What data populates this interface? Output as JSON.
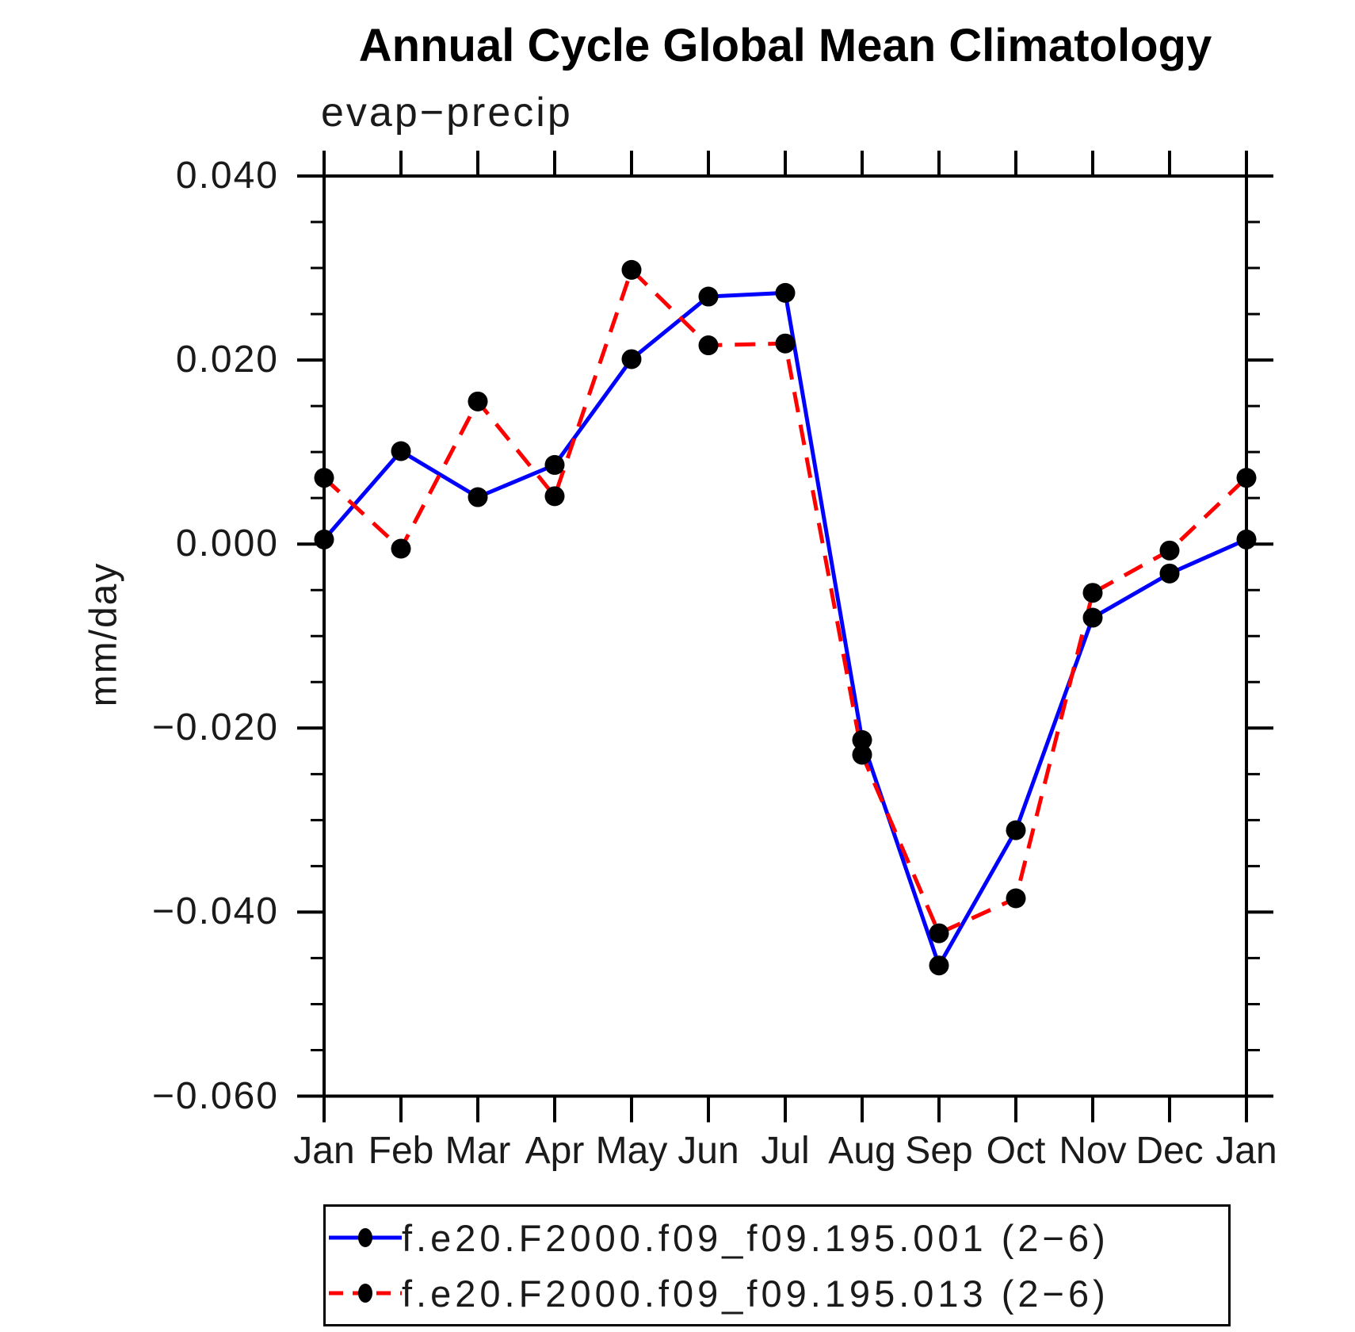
{
  "page": {
    "background": "#ffffff"
  },
  "header": {
    "title": "Annual Cycle Global Mean Climatology",
    "subtitle": "evap−precip"
  },
  "chart_data": {
    "type": "line",
    "title": "Annual Cycle Global Mean Climatology",
    "subtitle": "evap−precip",
    "xlabel": "",
    "ylabel": "mm/day",
    "units": "mm/day",
    "x_categories": [
      "Jan",
      "Feb",
      "Mar",
      "Apr",
      "May",
      "Jun",
      "Jul",
      "Aug",
      "Sep",
      "Oct",
      "Nov",
      "Dec",
      "Jan"
    ],
    "ylim": [
      -0.06,
      0.04
    ],
    "y_major_ticks": [
      {
        "value": 0.04,
        "label": "0.040"
      },
      {
        "value": 0.02,
        "label": "0.020"
      },
      {
        "value": 0.0,
        "label": "0.000"
      },
      {
        "value": -0.02,
        "label": "−0.020"
      },
      {
        "value": -0.04,
        "label": "−0.040"
      },
      {
        "value": -0.06,
        "label": "−0.060"
      }
    ],
    "y_minor_tick_step": 0.005,
    "grid": "off",
    "legend_position": "bottom",
    "marker": {
      "shape": "filled-circle",
      "color": "#000000"
    },
    "series": [
      {
        "name": "f.e20.F2000.f09_f09.195.001 (2−6)",
        "color": "#0000ff",
        "line_style": "solid",
        "values": [
          0.0005,
          0.0101,
          0.0051,
          0.0086,
          0.0201,
          0.0269,
          0.0273,
          -0.0213,
          -0.0458,
          -0.0311,
          -0.008,
          -0.0032,
          0.0005
        ]
      },
      {
        "name": "f.e20.F2000.f09_f09.195.013 (2−6)",
        "color": "#ff0000",
        "line_style": "dashed",
        "values": [
          0.0072,
          -0.0005,
          0.0155,
          0.0052,
          0.0298,
          0.0216,
          0.0218,
          -0.0229,
          -0.0423,
          -0.0385,
          -0.0053,
          -0.0007,
          0.0072
        ]
      }
    ]
  }
}
